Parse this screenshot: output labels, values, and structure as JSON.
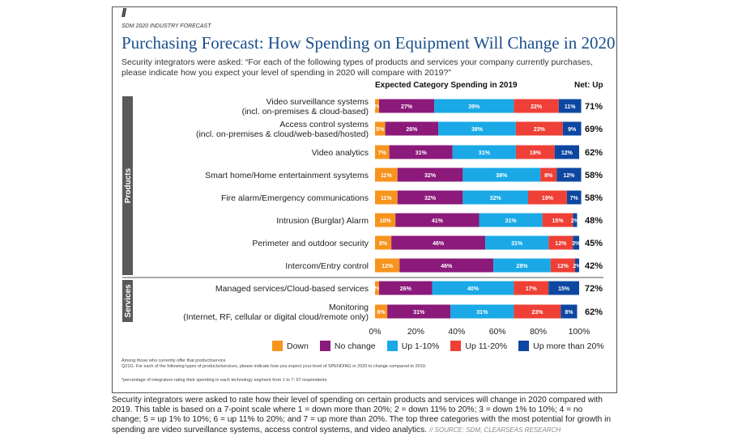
{
  "supertitle": "SDM 2020 INDUSTRY FORECAST",
  "title": "Purchasing Forecast: How Spending on Equipment Will Change in 2020",
  "subtitle": "Security integrators were asked: “For each of the following types of products and services your company currently purchases, please indicate how you expect your level of spending in 2020 will compare with 2019?”",
  "notes_line1": "Among those who currently offer that product/service",
  "notes_line2": "Q21G. For each of the following types of products/services, please indicate how you expect your level of SPENDING in 2020 to change compared to 2019.",
  "footnote": "*percentage of integrators rating their spending in each technology segment from 1 to 7; 97 respondents",
  "caption_text": "Security integrators were asked to rate how their level of spending on certain products and services will change in 2020 compared with 2019. This table is based on a 7-point scale where 1 = down more than 20%; 2 = down 11% to 20%; 3 = down 1% to 10%; 4 = no change; 5 = up 1% to 10%; 6 = up 11% to 20%; and 7 = up more than 20%. The top three categories with the most potential for growth in spending are video surveillance systems, access control systems, and video analytics.",
  "caption_source": "// SOURCE: SDM, CLEARSEAS RESEARCH",
  "colors": {
    "down": "#f7941d",
    "no_change": "#8b1a7a",
    "up_1_10": "#1aa9e6",
    "up_11_20": "#ee4036",
    "up_more_20": "#0d47a1",
    "group_bar": "#5a5a5a"
  },
  "chart_data": {
    "type": "bar",
    "orientation": "horizontal",
    "stacked": true,
    "header": "Expected Category Spending in 2019",
    "net_header": "Net: Up",
    "groups": [
      {
        "name": "Products",
        "categories": [
          "Video surveillance systems\n(incl. on-premises & cloud-based)",
          "Access control systems\n(incl. on-premises & cloud/web-based/hosted)",
          "Video analytics",
          "Smart home/Home entertainment sysytems",
          "Fire alarm/Emergency communications",
          "Intrusion (Burglar) Alarm",
          "Perimeter and outdoor security",
          "Intercom/Entry control"
        ]
      },
      {
        "name": "Services",
        "categories": [
          "Managed services/Cloud-based services",
          "Monitoring\n(Internet, RF, cellular or digital cloud/remote only)"
        ]
      }
    ],
    "categories": [
      "Video surveillance systems\n(incl. on-premises & cloud-based)",
      "Access control systems\n(incl. on-premises & cloud/web-based/hosted)",
      "Video analytics",
      "Smart home/Home entertainment sysytems",
      "Fire alarm/Emergency communications",
      "Intrusion (Burglar) Alarm",
      "Perimeter and outdoor security",
      "Intercom/Entry control",
      "Managed services/Cloud-based services",
      "Monitoring\n(Internet, RF, cellular or digital cloud/remote only)"
    ],
    "series": [
      {
        "name": "Down",
        "values": [
          2,
          5,
          7,
          11,
          11,
          10,
          8,
          12,
          2,
          6
        ]
      },
      {
        "name": "No change",
        "values": [
          27,
          26,
          31,
          32,
          32,
          41,
          46,
          46,
          26,
          31
        ]
      },
      {
        "name": "Up 1-10%",
        "values": [
          39,
          38,
          31,
          38,
          32,
          31,
          31,
          28,
          40,
          31
        ]
      },
      {
        "name": "Up 11-20%",
        "values": [
          22,
          23,
          19,
          8,
          19,
          15,
          12,
          12,
          17,
          23
        ]
      },
      {
        "name": "Up more than 20%",
        "values": [
          11,
          9,
          12,
          12,
          7,
          2,
          3,
          2,
          15,
          8
        ]
      }
    ],
    "net_up": [
      "71%",
      "69%",
      "62%",
      "58%",
      "58%",
      "48%",
      "45%",
      "42%",
      "72%",
      "62%"
    ],
    "xlim": [
      0,
      100
    ],
    "xticks": [
      "0%",
      "20%",
      "40%",
      "60%",
      "80%",
      "100%"
    ],
    "legend_position": "bottom"
  }
}
